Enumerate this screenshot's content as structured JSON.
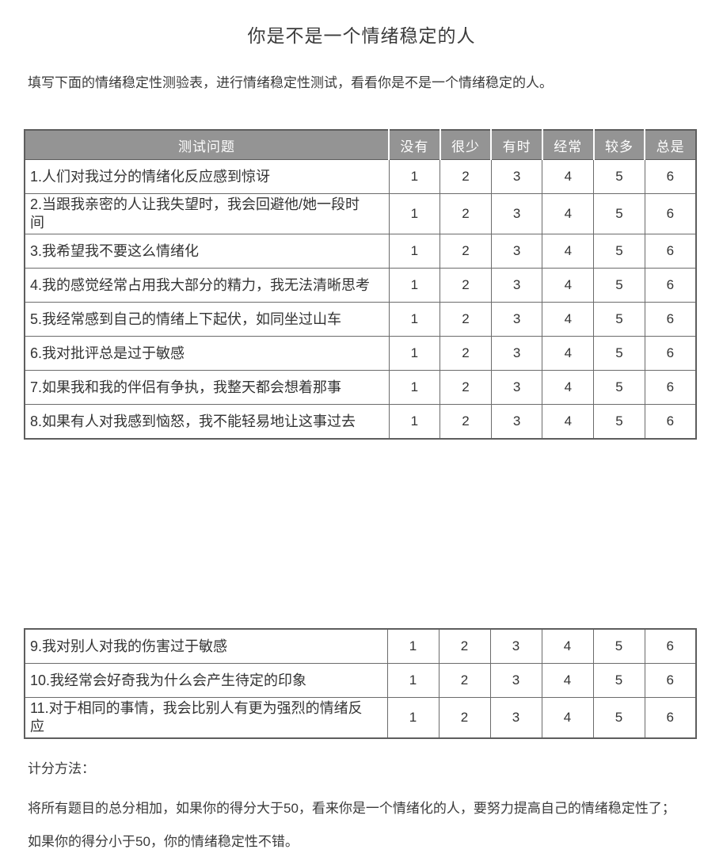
{
  "page": {
    "title": "你是不是一个情绪稳定的人",
    "intro": "填写下面的情绪稳定性测验表，进行情绪稳定性测试，看看你是不是一个情绪稳定的人。"
  },
  "table": {
    "headers": [
      "测试问题",
      "没有",
      "很少",
      "有时",
      "经常",
      "较多",
      "总是"
    ],
    "scale_values": [
      "1",
      "2",
      "3",
      "4",
      "5",
      "6"
    ],
    "questions_part1": [
      "1.人们对我过分的情绪化反应感到惊讶",
      "2.当跟我亲密的人让我失望时，我会回避他/她一段时间",
      "3.我希望我不要这么情绪化",
      "4.我的感觉经常占用我大部分的精力，我无法清晰思考",
      "5.我经常感到自己的情绪上下起伏，如同坐过山车",
      "6.我对批评总是过于敏感",
      "7.如果我和我的伴侣有争执，我整天都会想着那事",
      "8.如果有人对我感到恼怒，我不能轻易地让这事过去"
    ],
    "questions_part2": [
      "9.我对别人对我的伤害过于敏感",
      "10.我经常会好奇我为什么会产生待定的印象",
      "11.对于相同的事情，我会比别人有更为强烈的情绪反应"
    ]
  },
  "scoring": {
    "heading": "计分方法：",
    "line1": "将所有题目的总分相加，如果你的得分大于50，看来你是一个情绪化的人，要努力提高自己的情绪稳定性了；",
    "line2": "如果你的得分小于50，你的情绪稳定性不错。"
  },
  "colors": {
    "page_bg": "#ffffff",
    "header_bg": "#949494",
    "header_text": "#ffffff",
    "border_dark": "#5e5e5e",
    "border_mid": "#6b6b6b",
    "text": "#3b3b3b"
  }
}
